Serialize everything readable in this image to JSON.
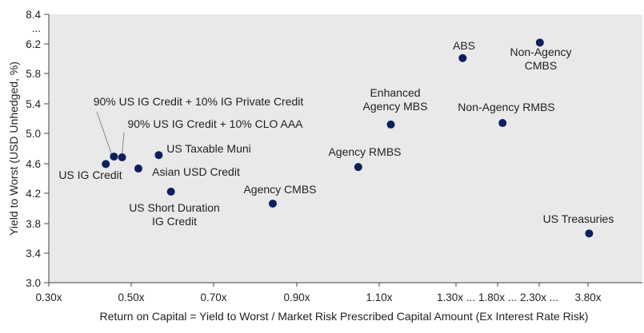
{
  "chart_data": {
    "type": "scatter",
    "title": "",
    "xlabel": "Return on Capital = Yield to Worst / Market Risk Prescribed Capital Amount (Ex Interest Rate Risk)",
    "ylabel": "Yield to Worst (USD Unhedged, %)",
    "xlim": [
      0.3,
      4.0
    ],
    "ylim": [
      3.0,
      8.4
    ],
    "x_axis_note": "Axis is broken: linear from 0.30x to 1.30x, then compressed segments 1.30x ... 1.80x ... 2.30x ... 3.80x",
    "y_axis_note": "Axis is broken between 6.2 and 8.4",
    "x_ticks": [
      "0.30x",
      "0.50x",
      "0.70x",
      "0.90x",
      "1.10x",
      "1.30x ...",
      "1.80x ...",
      "2.30x ...",
      "3.80x"
    ],
    "y_ticks": [
      "3.0",
      "3.4",
      "3.8",
      "4.2",
      "4.6",
      "5.0",
      "5.4",
      "5.8",
      "6.2",
      "...",
      "8.4"
    ],
    "grid": false,
    "background_color": "#e9e9e9",
    "marker_color": "#0d1f5c",
    "leader_line_color": "#888888",
    "points": [
      {
        "label": "US IG Credit",
        "x": 0.44,
        "y": 4.59
      },
      {
        "label": "90% US IG Credit + 10% IG Private Credit",
        "x": 0.46,
        "y": 4.69
      },
      {
        "label": "90% US IG Credit + 10% CLO AAA",
        "x": 0.48,
        "y": 4.68
      },
      {
        "label": "Asian USD Credit",
        "x": 0.52,
        "y": 4.53
      },
      {
        "label": "US Taxable Muni",
        "x": 0.57,
        "y": 4.71
      },
      {
        "label": "US Short Duration IG Credit",
        "x": 0.6,
        "y": 4.22
      },
      {
        "label": "Agency CMBS",
        "x": 0.85,
        "y": 4.06
      },
      {
        "label": "Agency RMBS",
        "x": 1.06,
        "y": 4.55
      },
      {
        "label": "Enhanced Agency MBS",
        "x": 1.14,
        "y": 5.12
      },
      {
        "label": "ABS",
        "x": 1.38,
        "y": 6.01
      },
      {
        "label": "Non-Agency RMBS",
        "x": 1.86,
        "y": 5.14
      },
      {
        "label": "Non-Agency CMBS",
        "x": 2.32,
        "y": 6.3
      },
      {
        "label": "US Treasuries",
        "x": 3.84,
        "y": 3.66
      }
    ]
  }
}
